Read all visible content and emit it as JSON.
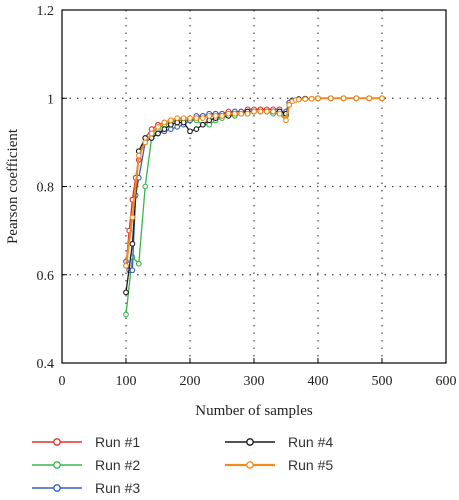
{
  "chart_data": {
    "type": "line",
    "title": "",
    "xlabel": "Number of samples",
    "ylabel": "Pearson coefficient",
    "xlim": [
      0,
      600
    ],
    "ylim": [
      0.4,
      1.2
    ],
    "xticks": [
      0,
      100,
      200,
      300,
      400,
      500,
      600
    ],
    "yticks": [
      0.4,
      0.6,
      0.8,
      1,
      1.2
    ],
    "xtick_labels": [
      "0",
      "100",
      "200",
      "300",
      "400",
      "500",
      "600"
    ],
    "ytick_labels": [
      "0.4",
      "0.6",
      "0.8",
      "1",
      "1.2"
    ],
    "grid": "dotted",
    "legend_position": "bottom",
    "series": [
      {
        "name": "Run #1",
        "color": "#e0302b",
        "x": [
          100,
          105,
          110,
          115,
          120,
          130,
          140,
          150,
          160,
          170,
          180,
          190,
          200,
          210,
          220,
          230,
          240,
          250,
          260,
          270,
          280,
          290,
          300,
          310,
          320,
          330,
          340,
          350,
          355,
          360,
          370,
          380,
          390,
          400,
          420,
          440,
          460,
          480,
          500
        ],
        "y": [
          0.62,
          0.7,
          0.77,
          0.82,
          0.86,
          0.91,
          0.93,
          0.94,
          0.945,
          0.95,
          0.95,
          0.95,
          0.95,
          0.955,
          0.96,
          0.96,
          0.965,
          0.965,
          0.97,
          0.97,
          0.97,
          0.975,
          0.975,
          0.975,
          0.975,
          0.975,
          0.975,
          0.96,
          0.99,
          0.995,
          0.998,
          0.999,
          0.999,
          1.0,
          1.0,
          1.0,
          1.0,
          1.0,
          1.0
        ]
      },
      {
        "name": "Run #2",
        "color": "#3ab54a",
        "x": [
          100,
          110,
          120,
          130,
          140,
          150,
          160,
          170,
          180,
          190,
          200,
          210,
          220,
          230,
          240,
          250,
          260,
          270,
          280,
          290,
          300,
          310,
          320,
          330,
          340,
          350,
          355,
          360,
          370,
          380,
          400,
          420,
          440,
          460,
          480,
          500
        ],
        "y": [
          0.51,
          0.64,
          0.625,
          0.8,
          0.91,
          0.93,
          0.94,
          0.945,
          0.95,
          0.95,
          0.95,
          0.95,
          0.94,
          0.94,
          0.95,
          0.955,
          0.96,
          0.96,
          0.965,
          0.965,
          0.97,
          0.97,
          0.97,
          0.965,
          0.965,
          0.96,
          0.99,
          0.995,
          0.998,
          0.999,
          1.0,
          1.0,
          1.0,
          1.0,
          1.0,
          1.0
        ]
      },
      {
        "name": "Run #3",
        "color": "#3a5fb5",
        "x": [
          100,
          105,
          110,
          115,
          120,
          130,
          140,
          150,
          160,
          170,
          180,
          190,
          200,
          210,
          220,
          230,
          240,
          250,
          260,
          270,
          280,
          290,
          300,
          310,
          320,
          330,
          340,
          350,
          355,
          360,
          370,
          380,
          400,
          420,
          440,
          460,
          480,
          500
        ],
        "y": [
          0.63,
          0.61,
          0.61,
          0.78,
          0.82,
          0.9,
          0.91,
          0.92,
          0.925,
          0.93,
          0.935,
          0.94,
          0.95,
          0.96,
          0.96,
          0.965,
          0.965,
          0.965,
          0.965,
          0.97,
          0.97,
          0.97,
          0.97,
          0.97,
          0.97,
          0.97,
          0.97,
          0.97,
          0.99,
          0.995,
          0.998,
          0.999,
          1.0,
          1.0,
          1.0,
          1.0,
          1.0,
          1.0
        ]
      },
      {
        "name": "Run #4",
        "color": "#1a1a1a",
        "x": [
          100,
          110,
          120,
          130,
          140,
          150,
          160,
          170,
          180,
          190,
          200,
          210,
          220,
          230,
          240,
          250,
          260,
          270,
          280,
          290,
          300,
          310,
          320,
          330,
          340,
          350,
          355,
          360,
          370,
          380,
          400,
          420,
          440,
          460,
          480,
          500
        ],
        "y": [
          0.56,
          0.67,
          0.88,
          0.91,
          0.91,
          0.92,
          0.93,
          0.94,
          0.945,
          0.945,
          0.925,
          0.93,
          0.94,
          0.95,
          0.955,
          0.96,
          0.96,
          0.965,
          0.965,
          0.97,
          0.97,
          0.97,
          0.97,
          0.97,
          0.97,
          0.965,
          0.985,
          0.995,
          0.998,
          0.999,
          1.0,
          1.0,
          1.0,
          1.0,
          1.0,
          1.0
        ]
      },
      {
        "name": "Run #5",
        "color": "#f28a1c",
        "x": [
          100,
          110,
          120,
          130,
          140,
          150,
          160,
          170,
          180,
          190,
          200,
          210,
          220,
          230,
          240,
          250,
          260,
          270,
          280,
          290,
          300,
          310,
          320,
          330,
          340,
          350,
          355,
          360,
          365,
          370,
          380,
          390,
          400,
          420,
          440,
          460,
          480,
          500
        ],
        "y": [
          0.62,
          0.73,
          0.87,
          0.9,
          0.92,
          0.935,
          0.945,
          0.95,
          0.955,
          0.955,
          0.955,
          0.955,
          0.955,
          0.96,
          0.96,
          0.96,
          0.965,
          0.965,
          0.965,
          0.965,
          0.97,
          0.97,
          0.97,
          0.97,
          0.965,
          0.95,
          0.985,
          0.993,
          0.996,
          0.997,
          0.998,
          0.999,
          1.0,
          1.0,
          1.0,
          1.0,
          1.0,
          1.0
        ]
      }
    ]
  }
}
